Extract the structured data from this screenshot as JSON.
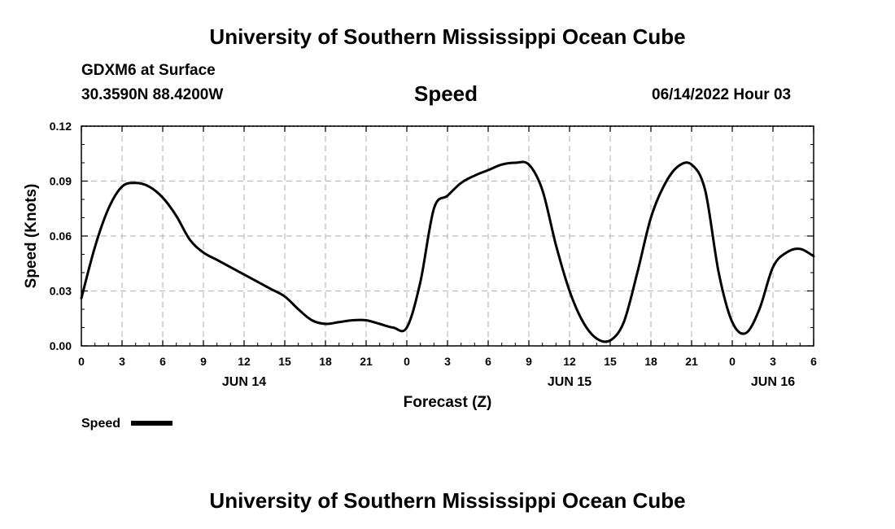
{
  "header": {
    "title": "University of Southern Mississippi Ocean Cube",
    "station": "GDXM6 at Surface",
    "coords": "30.3590N  88.4200W",
    "chart_name": "Speed",
    "date": "06/14/2022 Hour 03"
  },
  "footer": {
    "title": "University of Southern Mississippi Ocean Cube"
  },
  "legend": {
    "label": "Speed"
  },
  "chart_data": {
    "type": "line",
    "title": "Speed",
    "xlabel": "Forecast (Z)",
    "ylabel": "Speed (Knots)",
    "xlim": [
      0,
      54
    ],
    "ylim": [
      0,
      0.12
    ],
    "grid": true,
    "legend_position": "bottom-left",
    "line_color": "#000000",
    "x_ticks": [
      0,
      3,
      6,
      9,
      12,
      15,
      18,
      21,
      24,
      27,
      30,
      33,
      36,
      39,
      42,
      45,
      48,
      51,
      54
    ],
    "x_tick_labels": [
      "0",
      "3",
      "6",
      "9",
      "12",
      "15",
      "18",
      "21",
      "0",
      "3",
      "6",
      "9",
      "12",
      "15",
      "18",
      "21",
      "0",
      "3",
      "6"
    ],
    "y_ticks": [
      0,
      0.03,
      0.06,
      0.09,
      0.12
    ],
    "y_tick_labels": [
      "0.00",
      "0.03",
      "0.06",
      "0.09",
      "0.12"
    ],
    "date_labels": [
      {
        "x": 12,
        "label": "JUN 14"
      },
      {
        "x": 36,
        "label": "JUN 15"
      },
      {
        "x": 51,
        "label": "JUN 16"
      }
    ],
    "series": [
      {
        "name": "Speed",
        "x": [
          0,
          1,
          2,
          3,
          4,
          5,
          6,
          7,
          8,
          9,
          10,
          11,
          12,
          13,
          14,
          15,
          16,
          17,
          18,
          19,
          20,
          21,
          22,
          23,
          24,
          25,
          26,
          27,
          28,
          29,
          30,
          31,
          32,
          33,
          34,
          35,
          36,
          37,
          38,
          39,
          40,
          41,
          42,
          43,
          44,
          45,
          46,
          47,
          48,
          49,
          50,
          51,
          52,
          53,
          54
        ],
        "values": [
          0.026,
          0.054,
          0.075,
          0.087,
          0.089,
          0.087,
          0.081,
          0.071,
          0.058,
          0.051,
          0.047,
          0.043,
          0.039,
          0.035,
          0.031,
          0.027,
          0.02,
          0.014,
          0.012,
          0.013,
          0.014,
          0.014,
          0.012,
          0.01,
          0.01,
          0.035,
          0.075,
          0.082,
          0.089,
          0.093,
          0.096,
          0.099,
          0.1,
          0.099,
          0.085,
          0.055,
          0.03,
          0.013,
          0.004,
          0.003,
          0.013,
          0.04,
          0.07,
          0.088,
          0.098,
          0.099,
          0.085,
          0.04,
          0.013,
          0.007,
          0.02,
          0.043,
          0.051,
          0.053,
          0.049
        ]
      }
    ]
  }
}
